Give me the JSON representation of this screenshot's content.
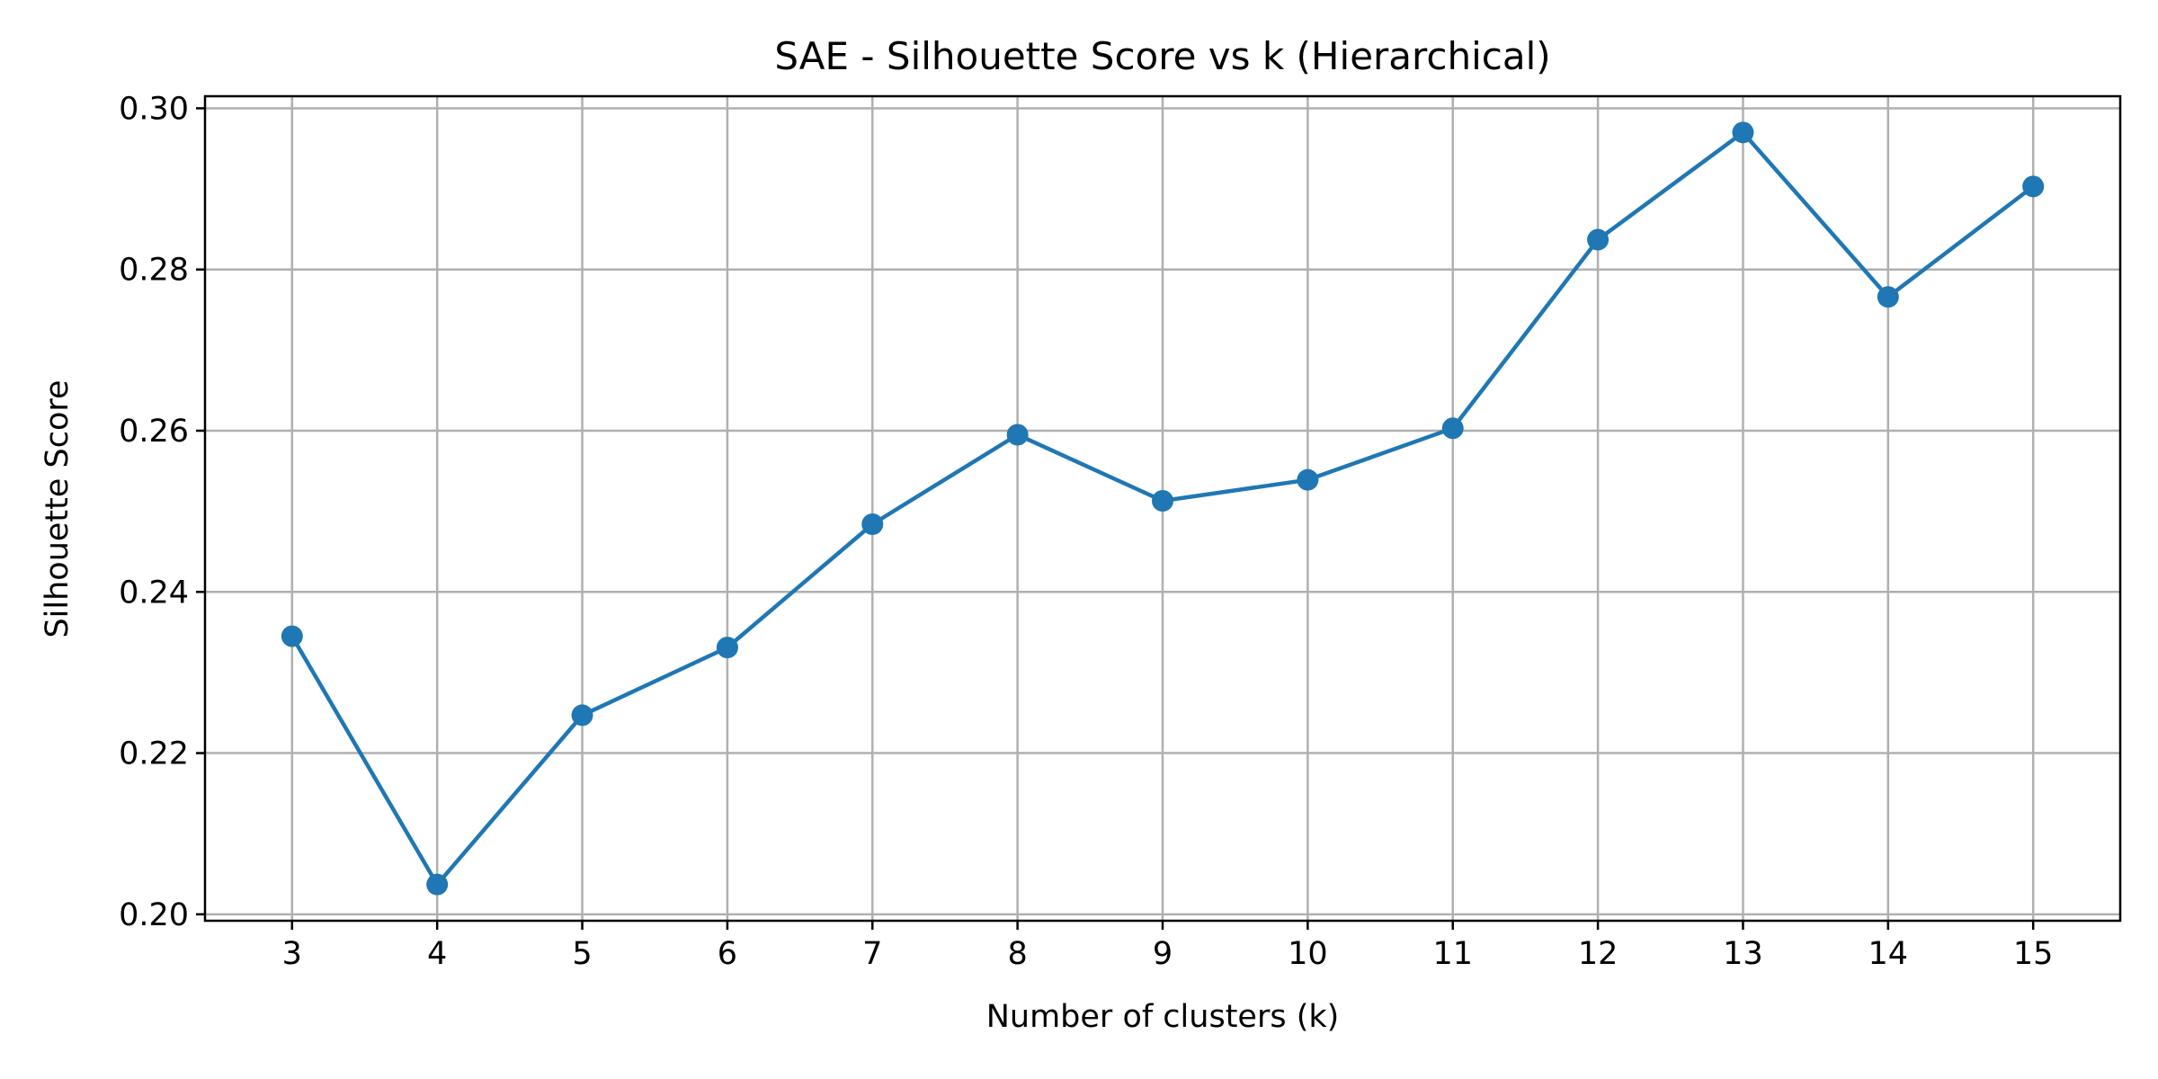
{
  "chart_data": {
    "type": "line",
    "title": "SAE - Silhouette Score vs k (Hierarchical)",
    "xlabel": "Number of clusters (k)",
    "ylabel": "Silhouette Score",
    "x": [
      3,
      4,
      5,
      6,
      7,
      8,
      9,
      10,
      11,
      12,
      13,
      14,
      15
    ],
    "x_tick_labels": [
      "3",
      "4",
      "5",
      "6",
      "7",
      "8",
      "9",
      "10",
      "11",
      "12",
      "13",
      "14",
      "15"
    ],
    "y_ticks": [
      0.2,
      0.22,
      0.24,
      0.26,
      0.28,
      0.3
    ],
    "y_tick_labels": [
      "0.20",
      "0.22",
      "0.24",
      "0.26",
      "0.28",
      "0.30"
    ],
    "xlim": [
      2.4,
      15.6
    ],
    "ylim": [
      0.1992,
      0.3015
    ],
    "grid": true,
    "series": [
      {
        "values": [
          0.2345,
          0.2037,
          0.2247,
          0.2331,
          0.2484,
          0.2595,
          0.2513,
          0.2539,
          0.2603,
          0.2837,
          0.297,
          0.2766,
          0.2903
        ],
        "color": "#1f77b4",
        "marker": "circle"
      }
    ]
  }
}
